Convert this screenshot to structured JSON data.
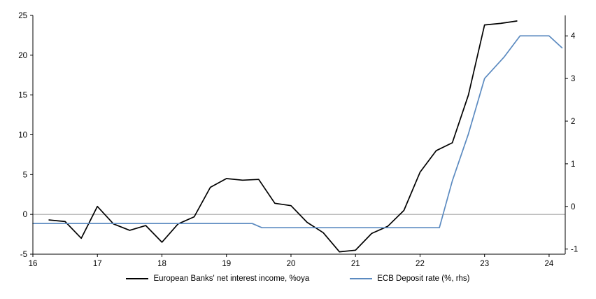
{
  "chart": {
    "legend": [
      {
        "label": "European Banks' net interest income, %oya",
        "color": "#000000"
      },
      {
        "label": "ECB Deposit rate (%, rhs)",
        "color": "#5b8ac0"
      }
    ]
  },
  "chart_data": {
    "type": "line",
    "title": "",
    "xlabel": "",
    "ylabel_left": "",
    "ylabel_right": "",
    "x_range": [
      16,
      24.25
    ],
    "x_ticks": [
      16,
      17,
      18,
      19,
      20,
      21,
      22,
      23,
      24
    ],
    "left_axis": {
      "range": [
        -5,
        25
      ],
      "ticks": [
        -5,
        0,
        5,
        10,
        15,
        20,
        25
      ]
    },
    "right_axis": {
      "range": [
        -1.12,
        4.48
      ],
      "ticks": [
        -1,
        0,
        1,
        2,
        3,
        4
      ]
    },
    "zero_line": {
      "value": 0,
      "axis": "left",
      "color": "#a6a6a6"
    },
    "grid": false,
    "legend_position": "bottom-center",
    "series": [
      {
        "name": "European Banks' net interest income, %oya",
        "axis": "left",
        "color": "#000000",
        "x": [
          16.25,
          16.5,
          16.75,
          17.0,
          17.25,
          17.5,
          17.75,
          18.0,
          18.25,
          18.5,
          18.75,
          19.0,
          19.25,
          19.5,
          19.75,
          20.0,
          20.25,
          20.5,
          20.75,
          21.0,
          21.25,
          21.5,
          21.75,
          22.0,
          22.25,
          22.5,
          22.75,
          23.0,
          23.25,
          23.5
        ],
        "values": [
          -0.7,
          -0.9,
          -3.0,
          1.0,
          -1.2,
          -2.0,
          -1.4,
          -3.5,
          -1.2,
          -0.3,
          3.4,
          4.5,
          4.3,
          4.4,
          1.4,
          1.1,
          -1.0,
          -2.3,
          -4.7,
          -4.5,
          -2.4,
          -1.5,
          0.5,
          5.3,
          8.0,
          9.0,
          15.0,
          23.8,
          24.0,
          24.3
        ]
      },
      {
        "name": "ECB Deposit rate (%, rhs)",
        "axis": "right",
        "color": "#5b8ac0",
        "x": [
          16.0,
          19.4,
          19.55,
          22.3,
          22.5,
          22.75,
          23.0,
          23.3,
          23.55,
          24.0,
          24.2
        ],
        "values": [
          -0.4,
          -0.4,
          -0.5,
          -0.5,
          0.6,
          1.7,
          3.0,
          3.5,
          4.0,
          4.0,
          3.72
        ]
      }
    ]
  }
}
